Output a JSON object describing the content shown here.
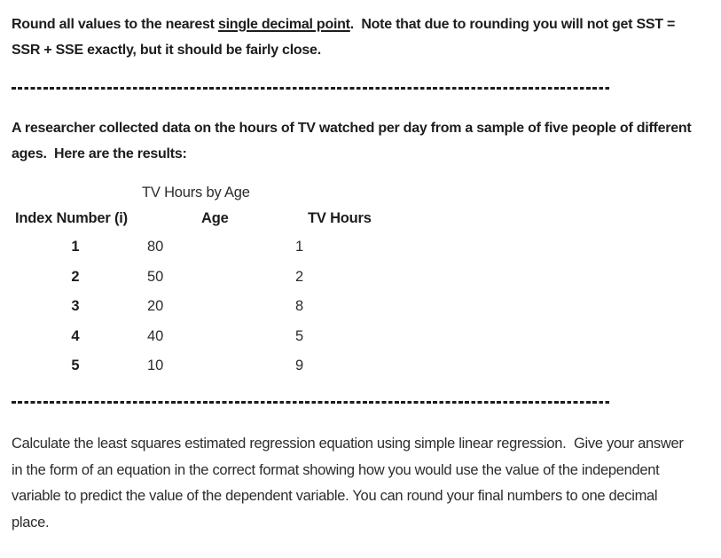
{
  "intro": {
    "before_underline": "Round all values to the nearest ",
    "underlined": "single decimal point",
    "after_underline": ".  Note that due to rounding you will not get SST = SSR + SSE exactly, but it should be fairly close."
  },
  "researcher_paragraph": "A researcher collected data on the hours of TV watched per day from a sample of five people of different ages.  Here are the results:",
  "table": {
    "title": "TV Hours by Age",
    "columns": [
      "Index Number (i)",
      "Age",
      "TV Hours"
    ],
    "rows": [
      {
        "index": "1",
        "age": "80",
        "tv_hours": "1"
      },
      {
        "index": "2",
        "age": "50",
        "tv_hours": "2"
      },
      {
        "index": "3",
        "age": "20",
        "tv_hours": "8"
      },
      {
        "index": "4",
        "age": "40",
        "tv_hours": "5"
      },
      {
        "index": "5",
        "age": "10",
        "tv_hours": "9"
      }
    ]
  },
  "question_paragraph": "Calculate the least squares estimated regression equation using simple linear regression.  Give your answer in the form of an equation in the correct format showing how you would use the value of the independent variable to predict the value of the dependent variable. You can round your final numbers to one decimal place.",
  "colors": {
    "text_bold": "#1d1d1f",
    "text_regular": "#2c2c2e",
    "divider": "#1d1d1f",
    "background": "#ffffff"
  }
}
